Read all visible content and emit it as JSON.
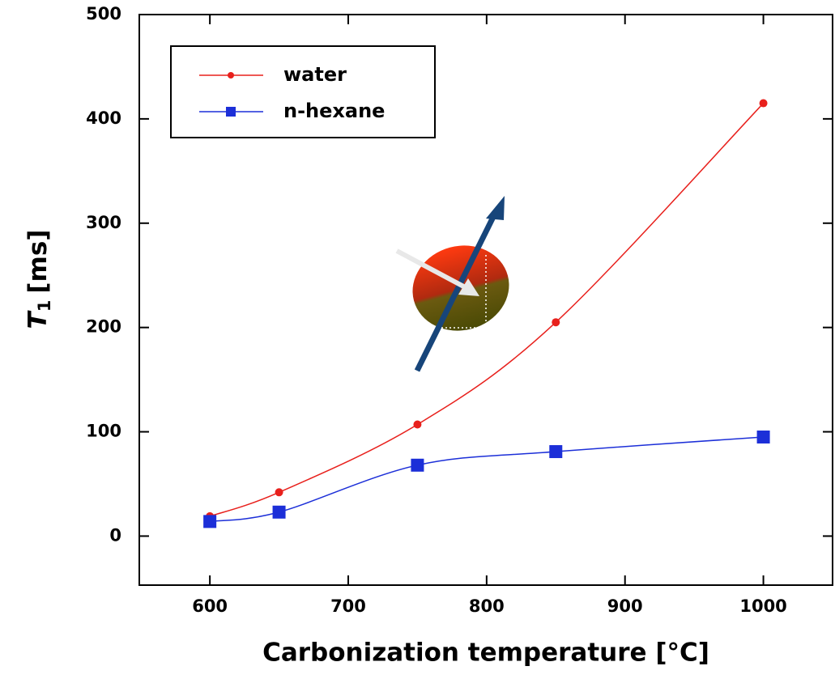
{
  "chart_data": {
    "type": "line",
    "x_label": "Carbonization temperature [°C]",
    "y_label": {
      "symbol": "T",
      "subscript": "1",
      "unit": "[ms]"
    },
    "xlim": [
      549,
      1050
    ],
    "xticks": [
      600,
      700,
      800,
      900,
      1000
    ],
    "ylim": [
      -47,
      500
    ],
    "yticks": [
      0,
      100,
      200,
      300,
      400,
      500
    ],
    "legend": "upper left",
    "series": [
      {
        "name": "water",
        "color": "#e8201c",
        "marker": "circle",
        "x": [
          600,
          650,
          750,
          850,
          1000
        ],
        "values": [
          19,
          42,
          107,
          205,
          415
        ]
      },
      {
        "name": "n-hexane",
        "color": "#1c2fd8",
        "marker": "square",
        "x": [
          600,
          650,
          750,
          850,
          1000
        ],
        "values": [
          14,
          23,
          68,
          81,
          95
        ]
      }
    ]
  }
}
